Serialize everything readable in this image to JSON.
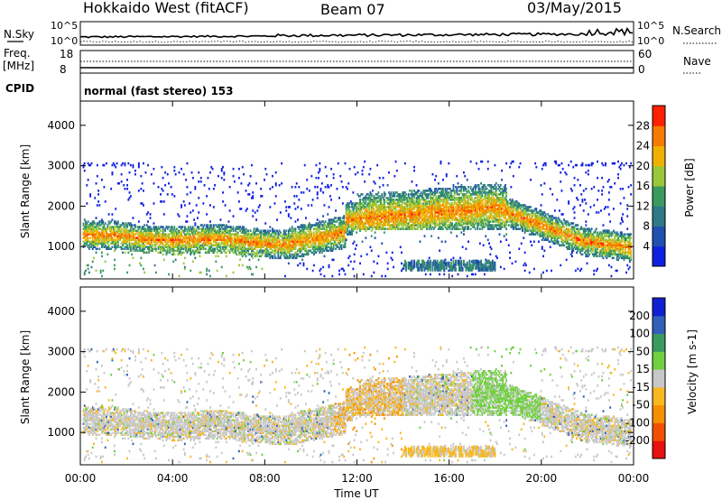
{
  "header": {
    "title": "Hokkaido West (fitACF)",
    "beam": "Beam 07",
    "date": "03/May/2015"
  },
  "status_panels": {
    "nsky_label": "N.Sky",
    "nsearch_label": "N.Search",
    "nsky_ticks": [
      "10^5",
      "10^0"
    ],
    "nsearch_ticks": [
      "10^5",
      "10^0"
    ],
    "freq_label": "Freq.",
    "freq_unit": "[MHz]",
    "freq_ticks": [
      "18",
      "8"
    ],
    "nave_label": "Nave",
    "nave_ticks": [
      "60",
      "0"
    ],
    "cpid_label": "CPID",
    "cpid_value": "normal (fast stereo) 153"
  },
  "chart_data": [
    {
      "type": "heatmap",
      "panel": "power",
      "ylabel": "Slant Range [km]",
      "y_ticks": [
        1000,
        2000,
        3000,
        4000
      ],
      "ylim": [
        200,
        4600
      ],
      "colorbar_label": "Power [dB]",
      "colorbar_ticks": [
        4,
        8,
        12,
        16,
        20,
        24,
        28
      ],
      "colorbar_range": [
        0,
        32
      ],
      "colors": [
        "#1020e0",
        "#2050b0",
        "#2f7a86",
        "#3a9a60",
        "#98c83a",
        "#f0b000",
        "#f57a00",
        "#ff2000"
      ]
    },
    {
      "type": "heatmap",
      "panel": "velocity",
      "ylabel": "Slant Range [km]",
      "y_ticks": [
        1000,
        2000,
        3000,
        4000
      ],
      "ylim": [
        200,
        4600
      ],
      "colorbar_label": "Velocity [m s-1]",
      "colorbar_ticks": [
        -200,
        -100,
        -50,
        -15,
        15,
        50,
        100,
        200
      ],
      "colors": [
        "#e81010",
        "#f05000",
        "#f59000",
        "#f8b820",
        "#c8c8c8",
        "#70d040",
        "#3a9a60",
        "#3060b8",
        "#1020d0"
      ]
    }
  ],
  "time_axis": {
    "xlabel": "Time UT",
    "ticks": [
      "00:00",
      "04:00",
      "08:00",
      "12:00",
      "16:00",
      "20:00",
      "00:00"
    ]
  }
}
